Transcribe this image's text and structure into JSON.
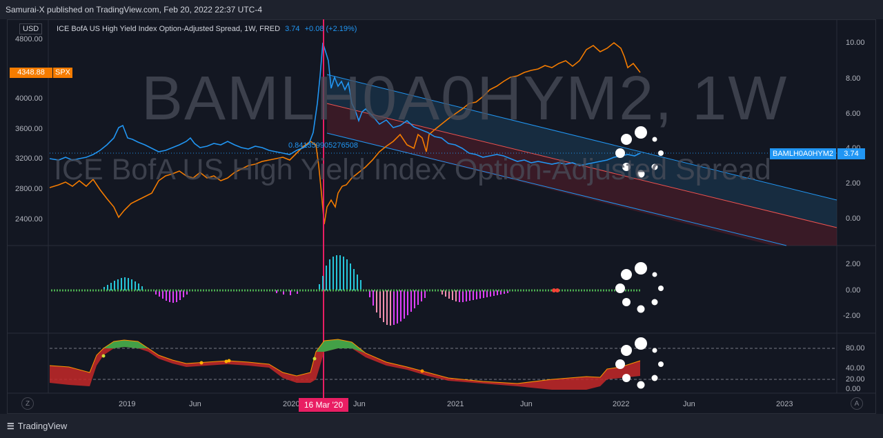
{
  "header": {
    "publisher_text": "Samurai-X published on TradingView.com, Feb 20, 2022 22:37 UTC-4"
  },
  "footer": {
    "brand": "TradingView"
  },
  "main_pane": {
    "currency": "USD",
    "legend_title": "ICE BofA US High Yield Index Option-Adjusted Spread, 1W, FRED",
    "legend_value": "3.74",
    "legend_change": "+0.08 (+2.19%)",
    "watermark_symbol": "BAMLH0A0HYM2, 1W",
    "watermark_name": "ICE BofA US High Yield Index Option-Adjusted Spread",
    "fib_label": "0.841359905276508",
    "spx_price": "4348.88",
    "spx_symbol": "SPX",
    "symbol_tag": "BAMLH0A0HYM2",
    "symbol_price": "3.74",
    "left_axis": [
      "4800.00",
      "4000.00",
      "3600.00",
      "3200.00",
      "2800.00",
      "2400.00"
    ],
    "right_axis": [
      "10.00",
      "8.00",
      "6.00",
      "4.00",
      "2.00",
      "0.00"
    ]
  },
  "pane2": {
    "right_axis": [
      "2.00",
      "0.00",
      "-2.00"
    ]
  },
  "pane3": {
    "right_axis": [
      "80.00",
      "40.00",
      "20.00",
      "0.00"
    ]
  },
  "time_axis": {
    "labels": [
      "2019",
      "Jun",
      "2020",
      "Jun",
      "2021",
      "Jun",
      "2022",
      "Jun",
      "2023"
    ],
    "cursor_label": "16 Mar '20"
  },
  "buttons": {
    "left_round": "Z",
    "right_round": "A"
  },
  "colors": {
    "spread": "#2196f3",
    "spx": "#f57c00",
    "cursor": "#e91e63",
    "bg": "#131722"
  }
}
